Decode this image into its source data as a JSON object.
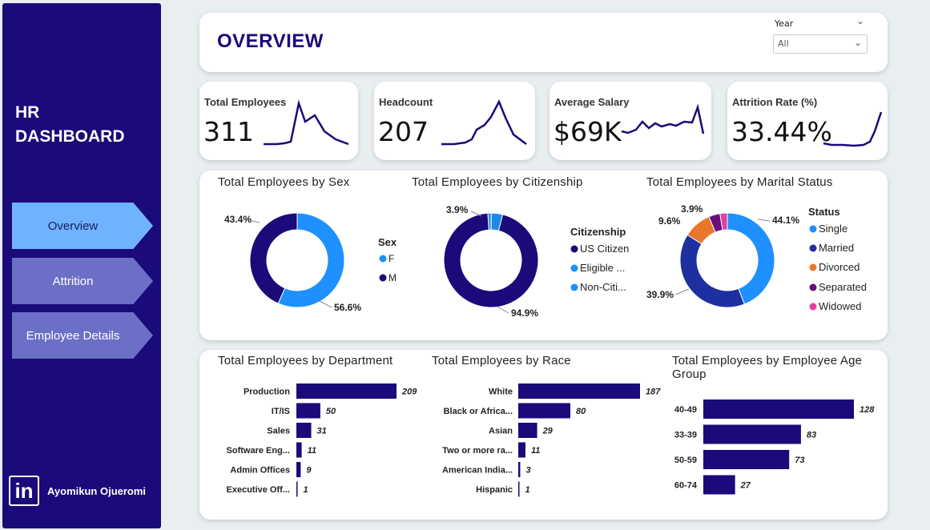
{
  "sidebar": {
    "title_line1": "HR",
    "title_line2": "DASHBOARD",
    "nav": [
      {
        "label": "Overview"
      },
      {
        "label": "Attrition"
      },
      {
        "label": "Employee Details"
      }
    ],
    "author": "Ayomikun Ojueromi",
    "logo_text": "in"
  },
  "header": {
    "title": "OVERVIEW",
    "year_label": "Year",
    "year_value": "All"
  },
  "kpis": [
    {
      "label": "Total Employees",
      "value": "311"
    },
    {
      "label": "Headcount",
      "value": "207"
    },
    {
      "label": "Average Salary",
      "value": "$69K"
    },
    {
      "label": "Attrition Rate (%)",
      "value": "33.44%"
    }
  ],
  "colors": {
    "navy": "#1a0a7a",
    "light_blue": "#1e90ff",
    "blue2": "#1e88e5",
    "orange": "#e8762c",
    "purple": "#6a0f7a",
    "pink": "#e040a0"
  },
  "chart_data": [
    {
      "type": "pie",
      "title": "Total Employees by Sex",
      "legend_title": "Sex",
      "categories": [
        "F",
        "M"
      ],
      "values": [
        56.6,
        43.4
      ],
      "labels": [
        "56.6%",
        "43.4%"
      ]
    },
    {
      "type": "pie",
      "title": "Total Employees by Citizenship",
      "legend_title": "Citizenship",
      "categories": [
        "US Citizen",
        "Eligible ...",
        "Non-Citi..."
      ],
      "values": [
        94.9,
        3.9,
        1.2
      ],
      "labels": [
        "94.9%",
        "3.9%"
      ]
    },
    {
      "type": "pie",
      "title": "Total Employees by Marital Status",
      "legend_title": "Status",
      "categories": [
        "Single",
        "Married",
        "Divorced",
        "Separated",
        "Widowed"
      ],
      "values": [
        44.1,
        39.9,
        9.6,
        3.9,
        2.5
      ],
      "labels": [
        "44.1%",
        "39.9%",
        "9.6%",
        "3.9%"
      ]
    },
    {
      "type": "bar",
      "title": "Total Employees by Department",
      "categories": [
        "Production",
        "IT/IS",
        "Sales",
        "Software Eng...",
        "Admin Offices",
        "Executive Off..."
      ],
      "values": [
        209,
        50,
        31,
        11,
        9,
        1
      ]
    },
    {
      "type": "bar",
      "title": "Total Employees by Race",
      "categories": [
        "White",
        "Black or Africa...",
        "Asian",
        "Two or more ra...",
        "American India...",
        "Hispanic"
      ],
      "values": [
        187,
        80,
        29,
        11,
        3,
        1
      ]
    },
    {
      "type": "bar",
      "title": "Total Employees by Employee Age Group",
      "categories": [
        "40-49",
        "33-39",
        "50-59",
        "60-74"
      ],
      "values": [
        128,
        83,
        73,
        27
      ]
    }
  ]
}
